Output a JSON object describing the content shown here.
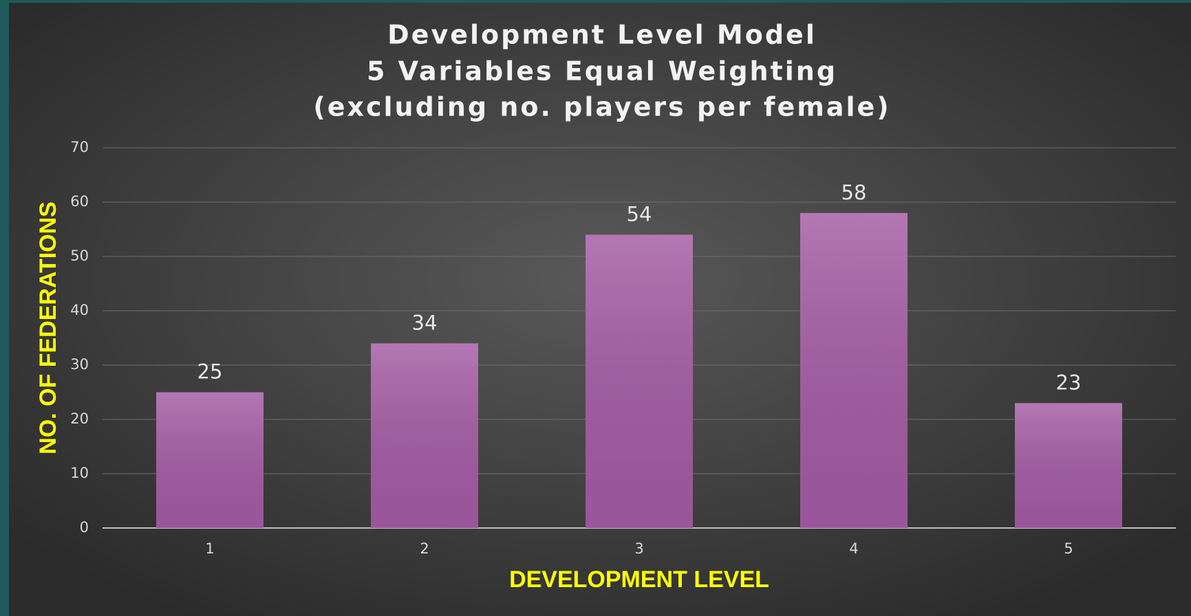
{
  "chart_data": {
    "type": "bar",
    "title": [
      "Development Level Model",
      "5 Variables Equal Weighting",
      "(excluding no. players per female)"
    ],
    "x_label": "DEVELOPMENT LEVEL",
    "y_label": "NO. OF FEDERATIONS",
    "categories": [
      "1",
      "2",
      "3",
      "4",
      "5"
    ],
    "values": [
      25,
      34,
      54,
      58,
      23
    ],
    "color": "#a35aa3",
    "ylim": [
      0,
      70
    ],
    "yticks": [
      0,
      10,
      20,
      30,
      40,
      50,
      60,
      70
    ],
    "grid": true
  }
}
